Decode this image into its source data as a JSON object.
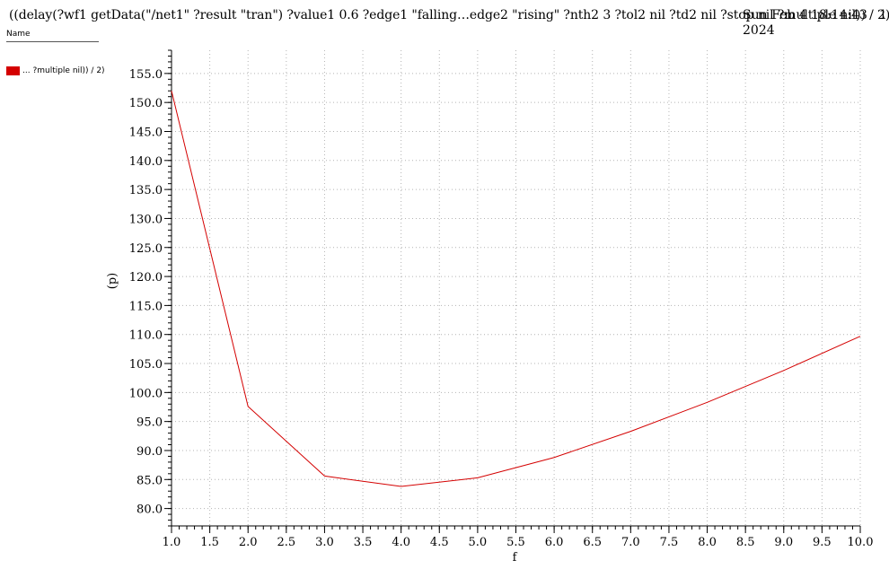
{
  "header": {
    "title": "((delay(?wf1 getData(\"/net1\" ?result \"tran\") ?value1 0.6 ?edge1 \"falling…edge2 \"rising\" ?nth2 3 ?tol2 nil ?td2 nil ?stop nil ?multiple nil)) / 2)",
    "date_line1": "Sun Feb 4 18:14:43",
    "date_line2": "2024",
    "page_number": "1"
  },
  "legend": {
    "header": "Name",
    "items": [
      {
        "label": "... ?multiple nil)) / 2)",
        "color": "#d40000"
      }
    ]
  },
  "chart_data": {
    "type": "line",
    "xlabel": "f",
    "ylabel": "(p)",
    "xlim": [
      1.0,
      10.0
    ],
    "ylim": [
      77.0,
      159.0
    ],
    "x_ticks": [
      "1.0",
      "1.5",
      "2.0",
      "2.5",
      "3.0",
      "3.5",
      "4.0",
      "4.5",
      "5.0",
      "5.5",
      "6.0",
      "6.5",
      "7.0",
      "7.5",
      "8.0",
      "8.5",
      "9.0",
      "9.5",
      "10.0"
    ],
    "y_ticks": [
      "80.0",
      "85.0",
      "90.0",
      "95.0",
      "100.0",
      "105.0",
      "110.0",
      "115.0",
      "120.0",
      "125.0",
      "130.0",
      "135.0",
      "140.0",
      "145.0",
      "150.0",
      "155.0"
    ],
    "grid": true,
    "series": [
      {
        "name": "... ?multiple nil)) / 2)",
        "color": "#d40000",
        "x": [
          1.0,
          2.0,
          3.0,
          4.0,
          5.0,
          6.0,
          7.0,
          8.0,
          9.0,
          10.0
        ],
        "y": [
          152.0,
          97.6,
          85.6,
          83.8,
          85.3,
          88.8,
          93.3,
          98.3,
          103.8,
          109.7
        ]
      }
    ]
  }
}
